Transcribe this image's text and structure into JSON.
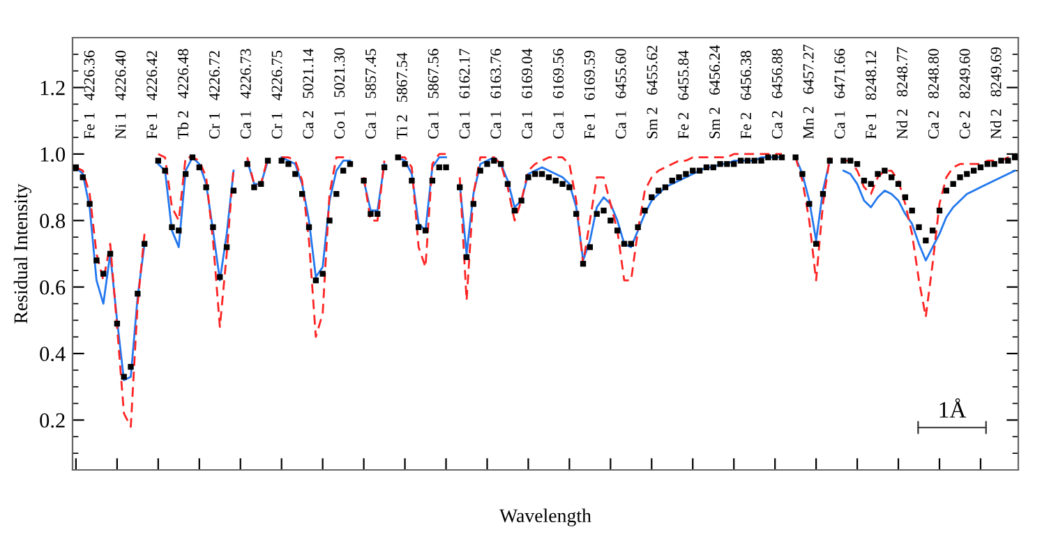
{
  "chart_data": {
    "type": "line",
    "xlabel": "Wavelength",
    "ylabel": "Residual Intensity",
    "categories": [
      null,
      null,
      null,
      null,
      null,
      null,
      null,
      null,
      null,
      null,
      null,
      null,
      null,
      null,
      null,
      null,
      null,
      null,
      null,
      null,
      null,
      null,
      null,
      null,
      null,
      null,
      null,
      null,
      null,
      null,
      null,
      null,
      null,
      null,
      null,
      null,
      null,
      null,
      null,
      null,
      null,
      null,
      null,
      null,
      null,
      null,
      null,
      null,
      null,
      null,
      null,
      null,
      null,
      null,
      null,
      null,
      null,
      null,
      null,
      null,
      null,
      null,
      null,
      null,
      null,
      null,
      null,
      null,
      null,
      null,
      null,
      null,
      null,
      null,
      null,
      null,
      null,
      null,
      null,
      null,
      null,
      null,
      null,
      null,
      null,
      null,
      null,
      null,
      null,
      null,
      null,
      null,
      null,
      null,
      null,
      null,
      null,
      null,
      null,
      null,
      null,
      null,
      null,
      null,
      null,
      null,
      null,
      null,
      null,
      null,
      null,
      null,
      null,
      null,
      null,
      null,
      null,
      null,
      null,
      null,
      null,
      null,
      null,
      null,
      null,
      null,
      null,
      null,
      null,
      null,
      null,
      null,
      null,
      null,
      null,
      null,
      null,
      null
    ],
    "series": [
      {
        "type": "scatter",
        "marker": "square",
        "color": "#000000",
        "values": [
          0.96,
          0.93,
          0.85,
          0.68,
          0.64,
          0.7,
          0.49,
          0.33,
          0.36,
          0.58,
          0.73,
          null,
          0.98,
          0.95,
          0.78,
          0.77,
          0.94,
          0.99,
          0.96,
          0.9,
          0.78,
          0.63,
          0.72,
          0.89,
          null,
          0.97,
          0.9,
          0.91,
          0.98,
          null,
          0.98,
          0.97,
          0.94,
          0.88,
          0.78,
          0.62,
          0.64,
          0.8,
          0.88,
          0.95,
          0.97,
          null,
          0.92,
          0.82,
          0.82,
          0.96,
          null,
          0.99,
          0.97,
          0.92,
          0.78,
          0.77,
          0.92,
          0.96,
          0.96,
          null,
          0.9,
          0.69,
          0.85,
          0.95,
          0.97,
          0.98,
          0.97,
          0.91,
          0.83,
          0.86,
          0.93,
          0.94,
          0.94,
          0.93,
          0.92,
          0.91,
          0.9,
          0.82,
          0.67,
          0.72,
          0.82,
          0.83,
          0.8,
          0.77,
          0.73,
          0.73,
          0.78,
          0.83,
          0.87,
          0.89,
          0.9,
          0.92,
          0.93,
          0.94,
          0.95,
          0.95,
          0.96,
          0.96,
          0.97,
          0.97,
          0.97,
          0.98,
          0.98,
          0.98,
          0.98,
          0.99,
          0.99,
          0.99,
          null,
          0.99,
          0.94,
          0.85,
          0.73,
          0.88,
          0.98,
          null,
          0.98,
          0.98,
          0.97,
          0.92,
          0.91,
          0.94,
          0.95,
          0.93,
          0.91,
          0.87,
          0.83,
          0.78,
          0.74,
          0.77,
          0.83,
          0.89,
          0.91,
          0.93,
          0.94,
          0.95,
          0.96,
          0.97,
          0.97,
          0.98,
          0.98,
          0.99
        ]
      },
      {
        "type": "line",
        "line_style": "solid",
        "color": "#2277ee",
        "values": [
          0.96,
          0.94,
          0.84,
          0.62,
          0.55,
          0.7,
          0.5,
          0.32,
          0.33,
          0.57,
          0.73,
          null,
          0.97,
          0.95,
          0.77,
          0.72,
          0.95,
          0.99,
          0.97,
          0.91,
          0.77,
          0.62,
          0.76,
          0.95,
          null,
          0.98,
          0.91,
          0.91,
          0.98,
          null,
          0.99,
          0.98,
          0.97,
          0.91,
          0.8,
          0.63,
          0.66,
          0.86,
          0.95,
          0.98,
          0.98,
          null,
          0.92,
          0.83,
          0.83,
          0.97,
          null,
          0.99,
          0.98,
          0.94,
          0.79,
          0.77,
          0.96,
          0.99,
          0.99,
          null,
          0.91,
          0.7,
          0.88,
          0.97,
          0.98,
          0.99,
          0.97,
          0.92,
          0.84,
          0.86,
          0.94,
          0.95,
          0.96,
          0.95,
          0.94,
          0.93,
          0.91,
          0.84,
          0.68,
          0.74,
          0.84,
          0.87,
          0.85,
          0.8,
          0.73,
          0.72,
          0.77,
          0.82,
          0.86,
          0.88,
          0.9,
          0.91,
          0.92,
          0.93,
          0.94,
          0.95,
          0.96,
          0.96,
          0.97,
          0.97,
          0.98,
          0.98,
          0.98,
          0.98,
          0.99,
          0.99,
          0.99,
          0.99,
          null,
          0.99,
          0.94,
          0.86,
          0.74,
          0.89,
          0.98,
          null,
          0.95,
          0.94,
          0.91,
          0.86,
          0.84,
          0.87,
          0.89,
          0.88,
          0.86,
          0.82,
          0.79,
          0.73,
          0.68,
          0.72,
          0.76,
          0.81,
          0.84,
          0.86,
          0.88,
          0.89,
          0.9,
          0.91,
          0.92,
          0.93,
          0.94,
          0.95
        ]
      },
      {
        "type": "line",
        "line_style": "dashed",
        "color": "#ff2222",
        "values": [
          0.96,
          0.95,
          0.88,
          0.7,
          0.62,
          0.73,
          0.48,
          0.22,
          0.18,
          0.55,
          0.76,
          null,
          1.0,
          0.99,
          0.84,
          0.8,
          0.99,
          0.99,
          0.98,
          0.93,
          0.74,
          0.48,
          0.7,
          0.96,
          null,
          0.99,
          0.91,
          0.91,
          0.99,
          null,
          0.99,
          0.99,
          0.98,
          0.92,
          0.74,
          0.45,
          0.52,
          0.88,
          0.99,
          0.99,
          0.99,
          null,
          0.93,
          0.8,
          0.8,
          0.98,
          null,
          0.99,
          0.99,
          0.96,
          0.72,
          0.66,
          0.97,
          1.0,
          1.0,
          null,
          0.93,
          0.56,
          0.88,
          0.99,
          0.99,
          0.99,
          0.97,
          0.9,
          0.8,
          0.86,
          0.95,
          0.97,
          0.98,
          0.99,
          0.99,
          0.99,
          0.97,
          0.86,
          0.67,
          0.8,
          0.93,
          0.93,
          0.85,
          0.77,
          0.62,
          0.62,
          0.77,
          0.89,
          0.93,
          0.95,
          0.96,
          0.97,
          0.98,
          0.98,
          0.99,
          0.99,
          0.99,
          0.99,
          0.99,
          0.99,
          1.0,
          1.0,
          1.0,
          1.0,
          1.0,
          1.0,
          1.0,
          1.0,
          null,
          0.99,
          0.92,
          0.8,
          0.62,
          0.85,
          0.99,
          null,
          0.98,
          0.98,
          0.95,
          0.9,
          0.88,
          0.93,
          0.95,
          0.95,
          0.92,
          0.85,
          0.76,
          0.62,
          0.51,
          0.67,
          0.85,
          0.93,
          0.96,
          0.97,
          0.97,
          0.97,
          0.97,
          0.98,
          0.98,
          0.98,
          0.99,
          0.99
        ]
      }
    ],
    "ylim": [
      0.05,
      1.35
    ],
    "yticks": [
      0.2,
      0.4,
      0.6,
      0.8,
      {
        "value": 1.0,
        "label": "1.0"
      },
      1.2
    ],
    "tick_labels": "y",
    "grid": false,
    "legend": false,
    "annotations": [
      "Fe 1   4226.36",
      "Ni 1   4226.40",
      "Fe 1   4226.42",
      "Tb 2   4226.48",
      "Cr 1   4226.72",
      "Ca 1   4226.73",
      "Cr 1   4226.75",
      "Ca 2   5021.14",
      "Co 1   5021.30",
      "Ca 1   5857.45",
      "Ti 2   5867.54",
      "Ca 1   5867.56",
      "Ca 1   6162.17",
      "Ca 1   6163.76",
      "Ca 1   6169.04",
      "Ca 1   6169.56",
      "Fe 1   6169.59",
      "Ca 1   6455.60",
      "Sm 2   6455.62",
      "Fe 2   6455.84",
      "Sm 2   6456.24",
      "Fe 2   6456.38",
      "Ca 2   6456.88",
      "Mn 2   6457.27",
      "Ca 1   6471.66",
      "Fe 1   8248.12",
      "Nd 2   8248.77",
      "Ca 2   8248.80",
      "Ce 2   8249.60",
      "Nd 2   8249.69",
      "1Å"
    ]
  }
}
